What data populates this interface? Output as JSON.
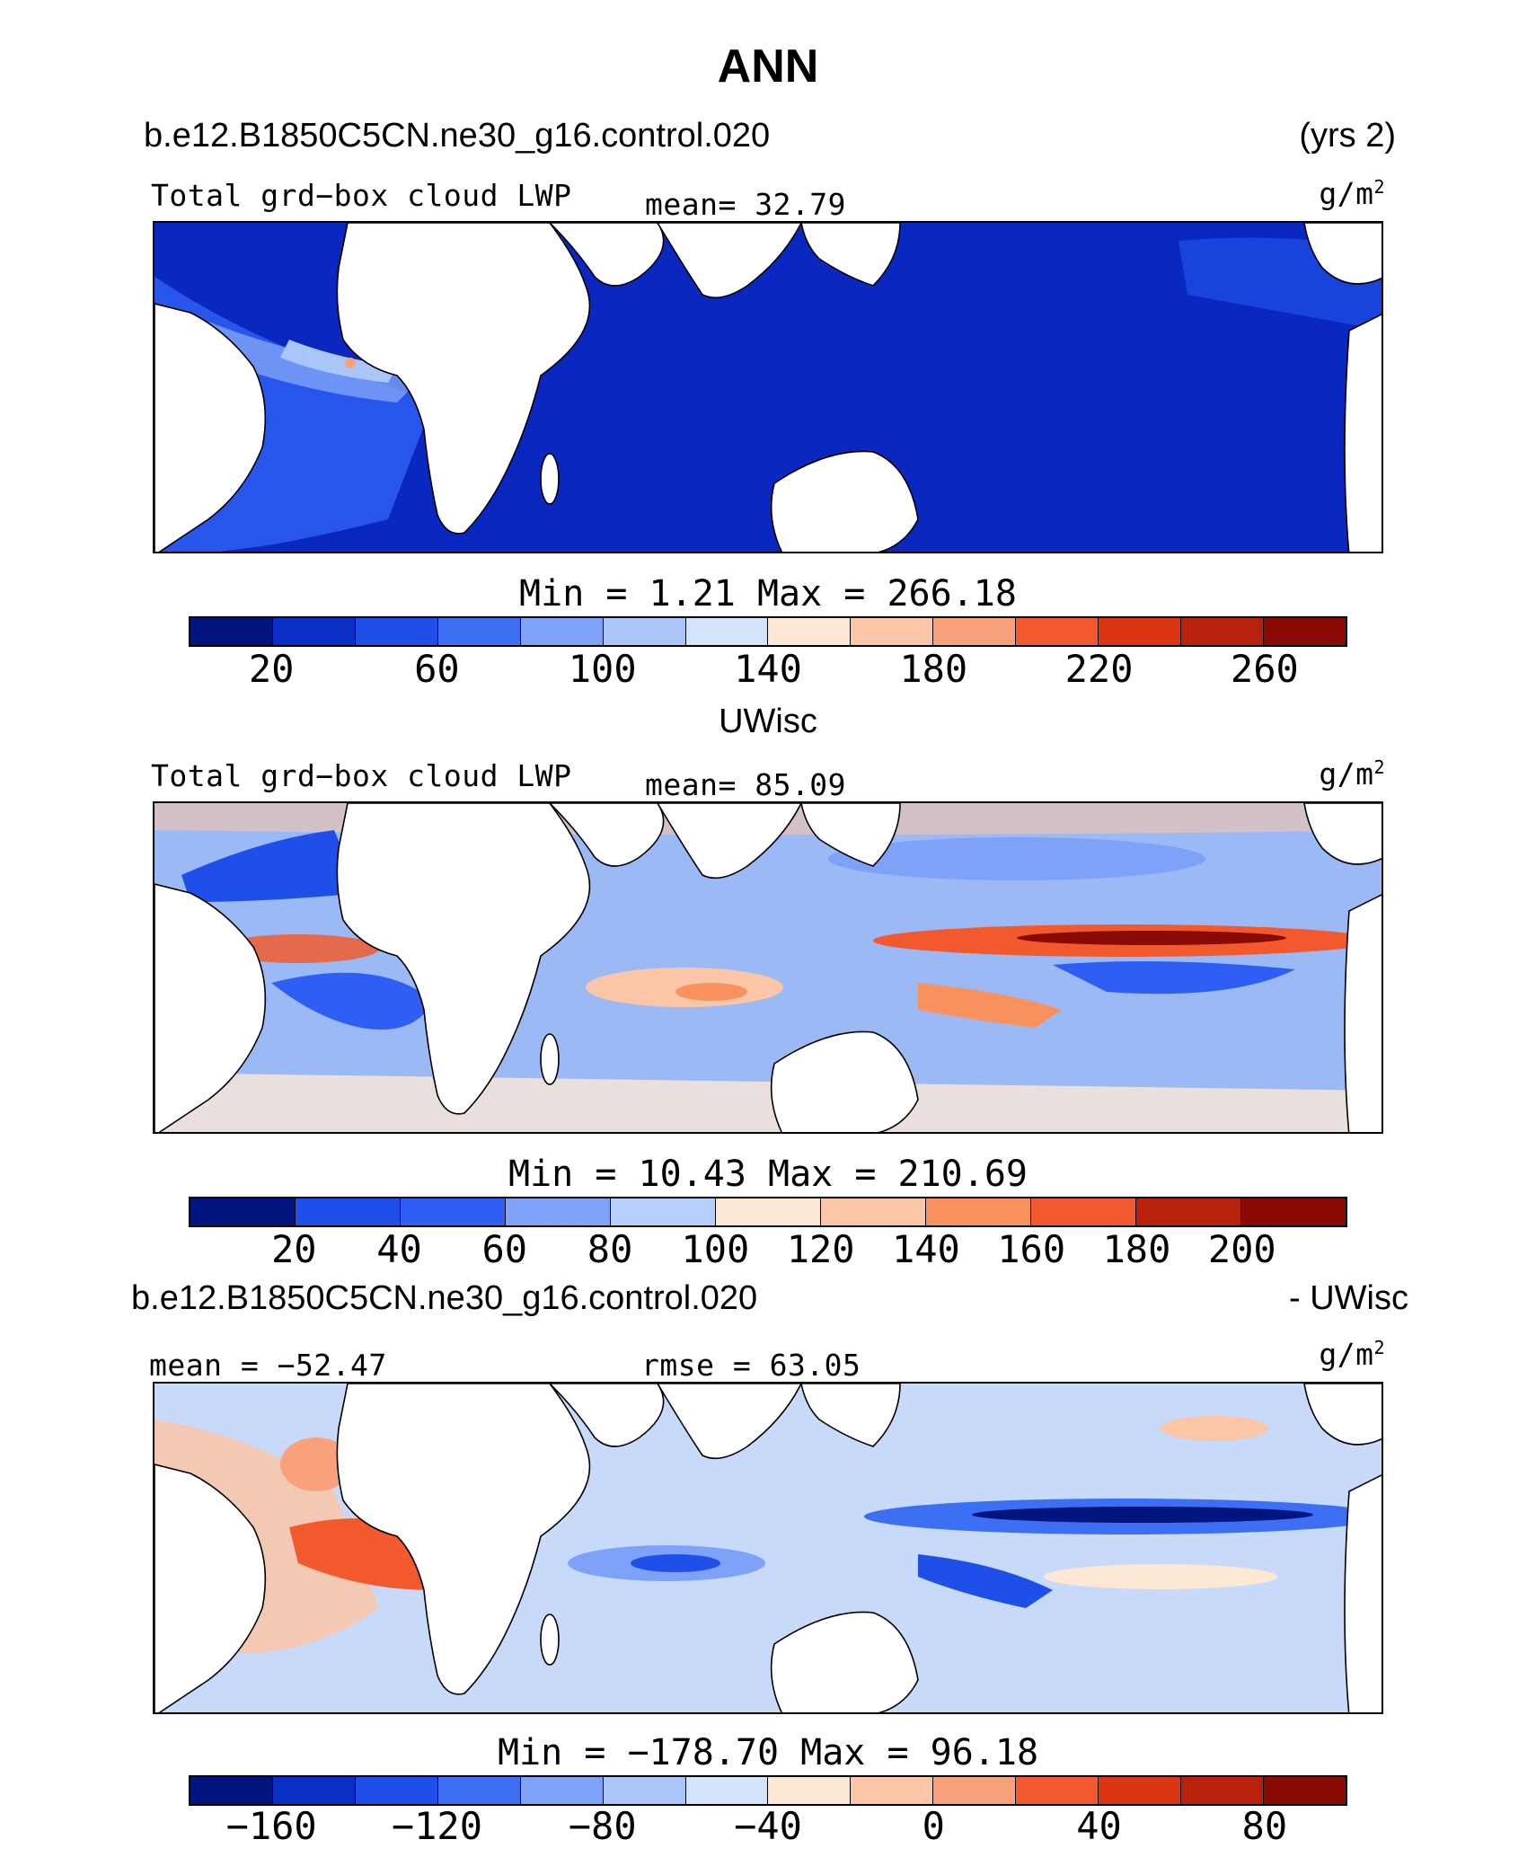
{
  "title": "ANN",
  "case_header": {
    "left": "b.e12.B1850C5CN.ne30_g16.control.020",
    "right": "(yrs 2)"
  },
  "colors": {
    "land": "#ffffff",
    "coast": "#000000"
  },
  "panels": [
    {
      "variable": "Total grd−box cloud LWP",
      "stat": "mean=  32.79",
      "units": "g/m",
      "units_sup": "2",
      "minmax": "Min  =    1.21  Max  =  266.18",
      "ocean_color": "#0a28c0",
      "colorbar": {
        "colors": [
          "#00157d",
          "#0a2fc4",
          "#1f4fe9",
          "#3d6ff5",
          "#7ea2f7",
          "#aac6f9",
          "#d3e4fb",
          "#fde8d6",
          "#fbc5a8",
          "#f9a07c",
          "#f25a2d",
          "#dc3512",
          "#b8220d",
          "#8a0a06"
        ],
        "ticks": [
          "20",
          "60",
          "100",
          "140",
          "180",
          "220",
          "260"
        ]
      }
    },
    {
      "section_title": "UWisc",
      "variable": "Total grd−box cloud LWP",
      "stat": "mean=  85.09",
      "units": "g/m",
      "units_sup": "2",
      "minmax": "Min  =   10.43  Max  =  210.69",
      "ocean_color": "#9ab9f5",
      "colorbar": {
        "colors": [
          "#00157d",
          "#1f4fe9",
          "#2e5ef3",
          "#7ea2f7",
          "#b6cffa",
          "#fde8d6",
          "#fbc5a8",
          "#f9915e",
          "#f25a2d",
          "#b8220d",
          "#8a0a06"
        ],
        "ticks": [
          "20",
          "40",
          "60",
          "80",
          "100",
          "120",
          "140",
          "160",
          "180",
          "200"
        ]
      }
    },
    {
      "section_left": "b.e12.B1850C5CN.ne30_g16.control.020",
      "section_right": "- UWisc",
      "variable": "mean = −52.47",
      "stat": "rmse =   63.05",
      "units": "g/m",
      "units_sup": "2",
      "minmax": "Min  = −178.70  Max  =   96.18",
      "ocean_color": "#c7daf9",
      "colorbar": {
        "colors": [
          "#00157d",
          "#0a2fc4",
          "#1f4fe9",
          "#3d6ff5",
          "#7ea2f7",
          "#aac6f9",
          "#d3e4fb",
          "#fde8d6",
          "#fbc5a8",
          "#f9a07c",
          "#f25a2d",
          "#dc3512",
          "#b8220d",
          "#8a0a06"
        ],
        "ticks": [
          "−160",
          "−120",
          "−80",
          "−40",
          "0",
          "40",
          "80"
        ]
      }
    }
  ]
}
